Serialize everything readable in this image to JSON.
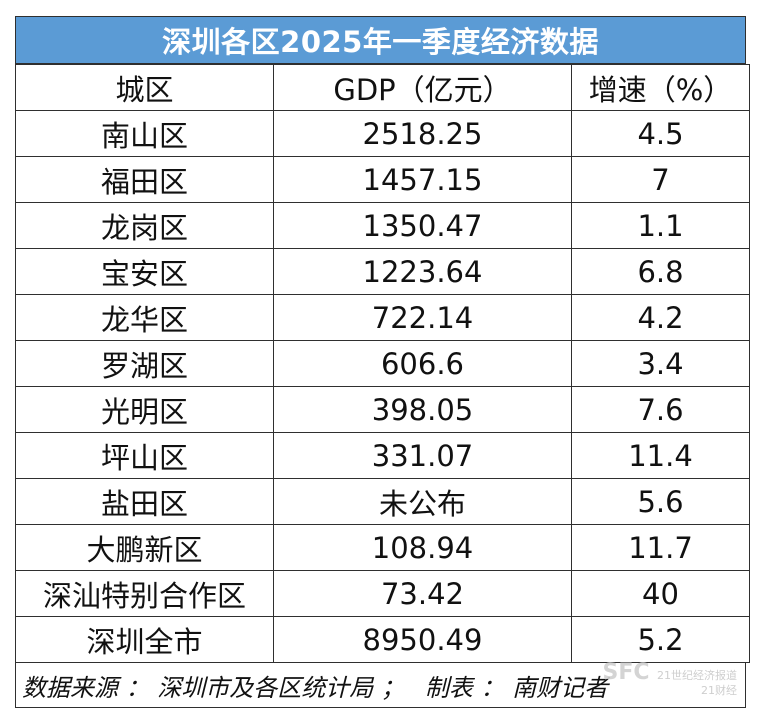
{
  "title": "深圳各区2025年一季度经济数据",
  "headers": [
    "城区",
    "GDP（亿元）",
    "增速（%）"
  ],
  "rows": [
    [
      "南山区",
      "2518.25",
      "4.5"
    ],
    [
      "福田区",
      "1457.15",
      "7"
    ],
    [
      "龙岗区",
      "1350.47",
      "1.1"
    ],
    [
      "宝安区",
      "1223.64",
      "6.8"
    ],
    [
      "龙华区",
      "722.14",
      "4.2"
    ],
    [
      "罗湖区",
      "606.6",
      "3.4"
    ],
    [
      "光明区",
      "398.05",
      "7.6"
    ],
    [
      "坪山区",
      "331.07",
      "11.4"
    ],
    [
      "盐田区",
      "未公布",
      "5.6"
    ],
    [
      "大鹏新区",
      "108.94",
      "11.7"
    ],
    [
      "深汕特别合作区",
      "73.42",
      "40"
    ],
    [
      "深圳全市",
      "8950.49",
      "5.2"
    ]
  ],
  "footer": {
    "source": "数据来源 ： 深圳市及各区统计局 ；",
    "maker": "制表 ： 南财记者"
  },
  "watermark": {
    "sfc": "SFC",
    "line1": "21世纪经济报道",
    "line2": "21财经"
  },
  "colors": {
    "title_bg": "#5b9bd5",
    "title_text": "#ffffff",
    "border": "#2f2f2f"
  }
}
